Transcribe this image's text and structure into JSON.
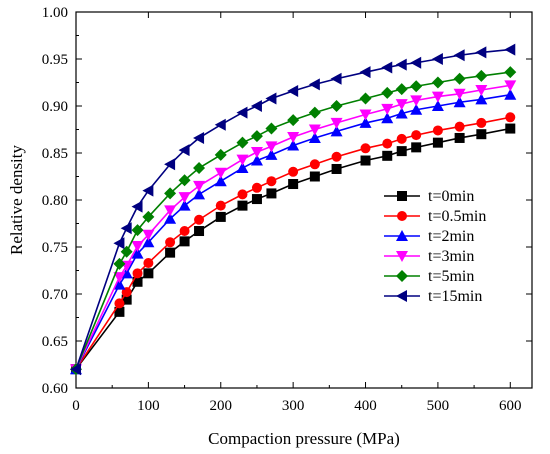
{
  "chart_data": {
    "type": "line",
    "xlabel": "Compaction pressure (MPa)",
    "ylabel": "Relative density",
    "xlim": [
      0,
      630
    ],
    "ylim": [
      0.6,
      1.0
    ],
    "xticks": [
      0,
      100,
      200,
      300,
      400,
      500,
      600
    ],
    "yticks": [
      0.6,
      0.65,
      0.7,
      0.75,
      0.8,
      0.85,
      0.9,
      0.95,
      1.0
    ],
    "legend_position": "center-right",
    "x": [
      0,
      60,
      70,
      85,
      100,
      130,
      150,
      170,
      200,
      230,
      250,
      270,
      300,
      330,
      360,
      400,
      430,
      450,
      470,
      500,
      530,
      560,
      600
    ],
    "series": [
      {
        "name": "t=0min",
        "color": "#000000",
        "marker": "square",
        "values": [
          0.62,
          0.681,
          0.694,
          0.713,
          0.722,
          0.744,
          0.756,
          0.767,
          0.782,
          0.794,
          0.801,
          0.807,
          0.817,
          0.825,
          0.833,
          0.842,
          0.847,
          0.852,
          0.856,
          0.861,
          0.866,
          0.87,
          0.876
        ]
      },
      {
        "name": "t=0.5min",
        "color": "#ff0000",
        "marker": "circle",
        "values": [
          0.62,
          0.69,
          0.702,
          0.722,
          0.733,
          0.755,
          0.767,
          0.779,
          0.794,
          0.806,
          0.813,
          0.82,
          0.83,
          0.838,
          0.846,
          0.855,
          0.86,
          0.865,
          0.869,
          0.874,
          0.878,
          0.882,
          0.888
        ]
      },
      {
        "name": "t=2min",
        "color": "#0000ff",
        "marker": "triangle-up",
        "values": [
          0.62,
          0.71,
          0.722,
          0.743,
          0.755,
          0.78,
          0.794,
          0.806,
          0.82,
          0.834,
          0.842,
          0.848,
          0.858,
          0.866,
          0.873,
          0.882,
          0.887,
          0.892,
          0.896,
          0.9,
          0.904,
          0.907,
          0.912
        ]
      },
      {
        "name": "t=3min",
        "color": "#ff00ff",
        "marker": "triangle-down",
        "values": [
          0.62,
          0.718,
          0.73,
          0.751,
          0.763,
          0.789,
          0.803,
          0.815,
          0.829,
          0.843,
          0.851,
          0.857,
          0.867,
          0.875,
          0.882,
          0.891,
          0.897,
          0.902,
          0.906,
          0.91,
          0.913,
          0.917,
          0.922
        ]
      },
      {
        "name": "t=5min",
        "color": "#008000",
        "marker": "diamond",
        "values": [
          0.62,
          0.732,
          0.745,
          0.768,
          0.782,
          0.807,
          0.821,
          0.834,
          0.848,
          0.861,
          0.868,
          0.876,
          0.885,
          0.893,
          0.9,
          0.908,
          0.914,
          0.918,
          0.921,
          0.925,
          0.929,
          0.932,
          0.936
        ]
      },
      {
        "name": "t=15min",
        "color": "#000080",
        "marker": "triangle-left",
        "values": [
          0.62,
          0.754,
          0.77,
          0.793,
          0.81,
          0.838,
          0.853,
          0.866,
          0.88,
          0.893,
          0.9,
          0.908,
          0.916,
          0.923,
          0.929,
          0.936,
          0.941,
          0.944,
          0.946,
          0.95,
          0.954,
          0.957,
          0.96
        ]
      }
    ]
  }
}
